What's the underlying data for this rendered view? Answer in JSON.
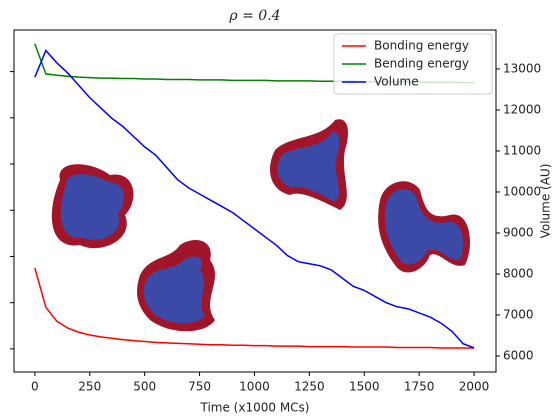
{
  "chart_data": {
    "type": "line",
    "title": "ρ = 0.4",
    "x_label": "Time (x1000 MCs)",
    "y2_label": "Volume (AU)",
    "x": [
      0,
      50,
      100,
      150,
      200,
      250,
      300,
      350,
      400,
      450,
      500,
      550,
      600,
      650,
      700,
      750,
      800,
      850,
      900,
      950,
      1000,
      1050,
      1100,
      1150,
      1200,
      1250,
      1300,
      1350,
      1400,
      1450,
      1500,
      1550,
      1600,
      1650,
      1700,
      1750,
      1800,
      1850,
      1900,
      1950,
      2000
    ],
    "series": [
      {
        "name": "Bonding energy",
        "color": "#ff0000",
        "axis": "y",
        "values": [
          1.75,
          0.9,
          0.6,
          0.45,
          0.36,
          0.3,
          0.26,
          0.23,
          0.2,
          0.18,
          0.16,
          0.14,
          0.13,
          0.12,
          0.11,
          0.1,
          0.09,
          0.09,
          0.08,
          0.08,
          0.07,
          0.07,
          0.06,
          0.06,
          0.06,
          0.05,
          0.05,
          0.05,
          0.05,
          0.04,
          0.04,
          0.04,
          0.04,
          0.03,
          0.03,
          0.03,
          0.03,
          0.02,
          0.02,
          0.02,
          0.02
        ]
      },
      {
        "name": "Bending energy",
        "color": "#008000",
        "axis": "y",
        "values": [
          6.6,
          5.95,
          5.92,
          5.9,
          5.88,
          5.87,
          5.86,
          5.86,
          5.85,
          5.85,
          5.84,
          5.84,
          5.83,
          5.83,
          5.83,
          5.82,
          5.82,
          5.82,
          5.81,
          5.81,
          5.81,
          5.81,
          5.8,
          5.8,
          5.8,
          5.8,
          5.79,
          5.79,
          5.79,
          5.79,
          5.78,
          5.78,
          5.78,
          5.78,
          5.78,
          5.77,
          5.77,
          5.77,
          5.77,
          5.76,
          5.76
        ]
      },
      {
        "name": "Volume",
        "color": "#0000ff",
        "axis": "y2",
        "values": [
          12800,
          13450,
          13150,
          12900,
          12600,
          12300,
          12050,
          11800,
          11600,
          11350,
          11100,
          10900,
          10600,
          10300,
          10100,
          9950,
          9800,
          9650,
          9500,
          9300,
          9100,
          8900,
          8700,
          8450,
          8300,
          8250,
          8200,
          8100,
          7900,
          7700,
          7600,
          7450,
          7300,
          7200,
          7150,
          7050,
          6950,
          6800,
          6600,
          6300,
          6200
        ]
      }
    ],
    "xlim": [
      -95,
      2100
    ],
    "xticks": [
      0,
      250,
      500,
      750,
      1000,
      1250,
      1500,
      1750,
      2000
    ],
    "ylim": [
      -0.5,
      6.9
    ],
    "yticks": [
      0,
      1,
      2,
      3,
      4,
      5,
      6
    ],
    "y2lim": [
      5610,
      13950
    ],
    "y2ticks": [
      6000,
      7000,
      8000,
      9000,
      10000,
      11000,
      12000,
      13000
    ],
    "legend": "upper right"
  }
}
